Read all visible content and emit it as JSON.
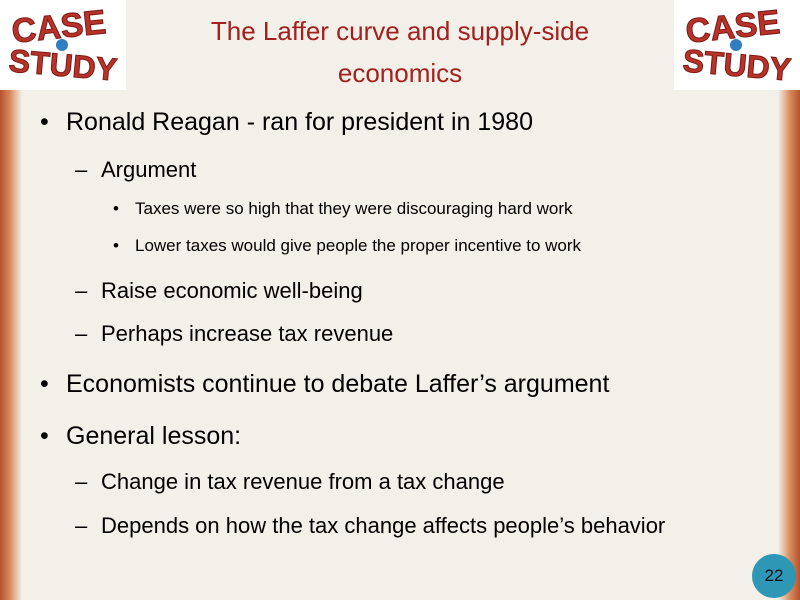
{
  "header": {
    "title": "The Laffer curve and supply-side economics",
    "logo": {
      "line1": "CASE",
      "line2": "STUDY"
    }
  },
  "bullets": [
    {
      "level": 0,
      "text": "Ronald Reagan - ran for president in 1980"
    },
    {
      "level": 1,
      "text": "Argument"
    },
    {
      "level": 2,
      "text": "Taxes were so high that they were discouraging hard work"
    },
    {
      "level": 2,
      "text": "Lower taxes would give people the proper incentive to work"
    },
    {
      "level": 1,
      "text": "Raise economic well-being"
    },
    {
      "level": 1,
      "text": "Perhaps increase tax revenue"
    },
    {
      "level": 0,
      "text": "Economists continue to debate Laffer’s argument"
    },
    {
      "level": 0,
      "text": "General lesson:"
    },
    {
      "level": 1,
      "text": "Change in tax revenue from a tax change"
    },
    {
      "level": 1,
      "text": "Depends on how the tax change affects people’s behavior"
    }
  ],
  "page_number": "22"
}
